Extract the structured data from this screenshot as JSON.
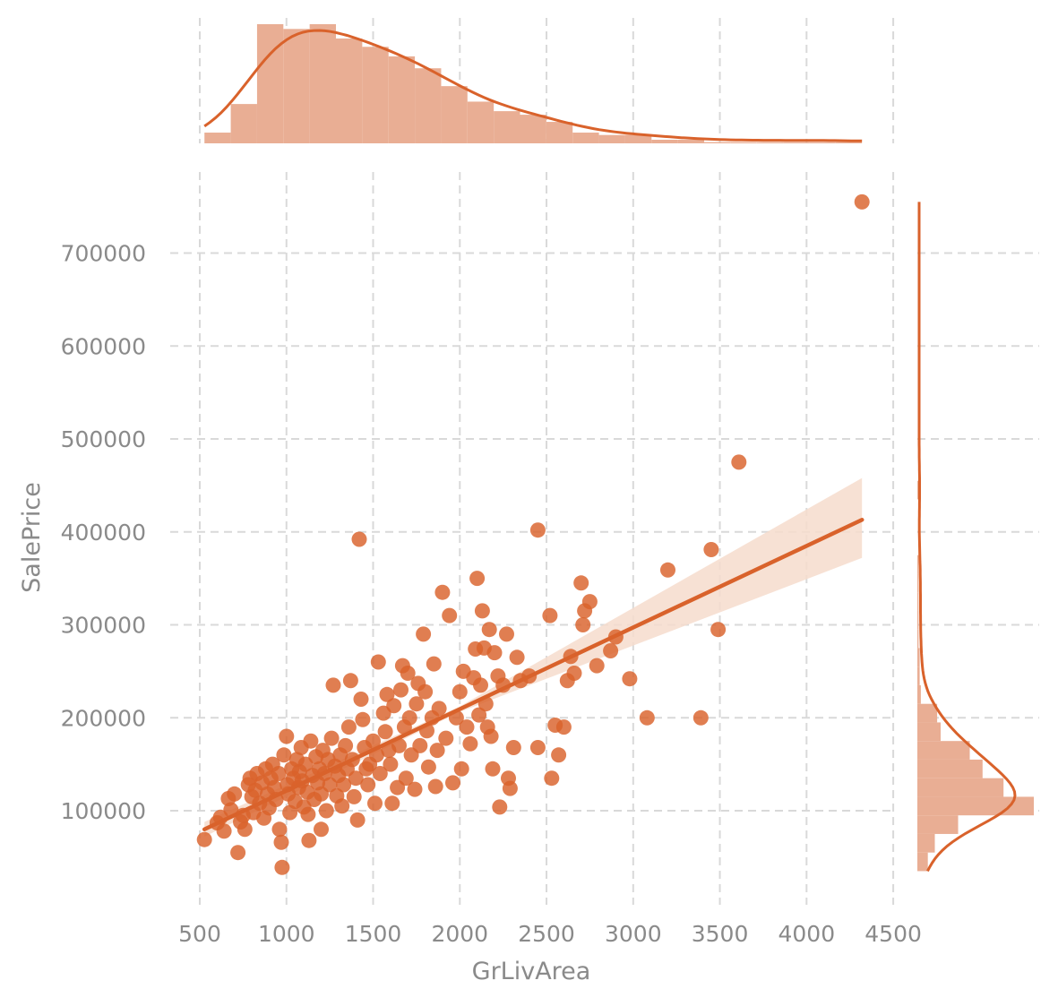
{
  "colors": {
    "accent": "#d9622b",
    "hist_fill": "#e9ae94",
    "ci_fill": "#f6dccd",
    "grid": "#d9d9d9",
    "text": "#8a8a8a"
  },
  "chart_data": {
    "type": "scatter",
    "layout": "jointplot",
    "xlabel": "GrLivArea",
    "ylabel": "SalePrice",
    "xlim": [
      400,
      4650
    ],
    "ylim": [
      10000,
      770000
    ],
    "x_ticks": [
      500,
      1000,
      1500,
      2000,
      2500,
      3000,
      3500,
      4000,
      4500
    ],
    "y_ticks": [
      100000,
      200000,
      300000,
      400000,
      500000,
      600000,
      700000
    ],
    "grid": true,
    "points": [
      [
        527,
        69000
      ],
      [
        600,
        87000
      ],
      [
        620,
        93000
      ],
      [
        640,
        78000
      ],
      [
        665,
        113000
      ],
      [
        680,
        101000
      ],
      [
        700,
        118000
      ],
      [
        720,
        55000
      ],
      [
        735,
        88000
      ],
      [
        750,
        95000
      ],
      [
        760,
        80000
      ],
      [
        780,
        128000
      ],
      [
        790,
        135000
      ],
      [
        800,
        115000
      ],
      [
        810,
        98000
      ],
      [
        820,
        122000
      ],
      [
        830,
        140000
      ],
      [
        845,
        108000
      ],
      [
        860,
        130000
      ],
      [
        870,
        92000
      ],
      [
        880,
        145000
      ],
      [
        890,
        118000
      ],
      [
        900,
        103000
      ],
      [
        910,
        135000
      ],
      [
        920,
        150000
      ],
      [
        930,
        125000
      ],
      [
        940,
        112000
      ],
      [
        955,
        140000
      ],
      [
        960,
        80000
      ],
      [
        970,
        66000
      ],
      [
        975,
        39000
      ],
      [
        985,
        160000
      ],
      [
        1000,
        180000
      ],
      [
        1005,
        128000
      ],
      [
        1010,
        118000
      ],
      [
        1020,
        98000
      ],
      [
        1030,
        145000
      ],
      [
        1040,
        135000
      ],
      [
        1050,
        110000
      ],
      [
        1060,
        155000
      ],
      [
        1070,
        125000
      ],
      [
        1075,
        142000
      ],
      [
        1085,
        168000
      ],
      [
        1090,
        132000
      ],
      [
        1100,
        104000
      ],
      [
        1110,
        150000
      ],
      [
        1120,
        120000
      ],
      [
        1125,
        96000
      ],
      [
        1130,
        68000
      ],
      [
        1140,
        175000
      ],
      [
        1150,
        138000
      ],
      [
        1160,
        112000
      ],
      [
        1170,
        158000
      ],
      [
        1180,
        130000
      ],
      [
        1190,
        145000
      ],
      [
        1200,
        80000
      ],
      [
        1200,
        118000
      ],
      [
        1210,
        165000
      ],
      [
        1220,
        140000
      ],
      [
        1230,
        100000
      ],
      [
        1240,
        155000
      ],
      [
        1250,
        128000
      ],
      [
        1260,
        178000
      ],
      [
        1270,
        235000
      ],
      [
        1280,
        148000
      ],
      [
        1290,
        116000
      ],
      [
        1300,
        138000
      ],
      [
        1310,
        160000
      ],
      [
        1320,
        105000
      ],
      [
        1330,
        128000
      ],
      [
        1340,
        170000
      ],
      [
        1350,
        145000
      ],
      [
        1360,
        190000
      ],
      [
        1370,
        240000
      ],
      [
        1380,
        155000
      ],
      [
        1390,
        115000
      ],
      [
        1400,
        135000
      ],
      [
        1410,
        90000
      ],
      [
        1420,
        392000
      ],
      [
        1430,
        220000
      ],
      [
        1440,
        198000
      ],
      [
        1450,
        168000
      ],
      [
        1460,
        145000
      ],
      [
        1470,
        128000
      ],
      [
        1480,
        150000
      ],
      [
        1500,
        175000
      ],
      [
        1510,
        108000
      ],
      [
        1520,
        160000
      ],
      [
        1530,
        260000
      ],
      [
        1540,
        140000
      ],
      [
        1560,
        205000
      ],
      [
        1570,
        185000
      ],
      [
        1580,
        225000
      ],
      [
        1590,
        165000
      ],
      [
        1600,
        150000
      ],
      [
        1610,
        108000
      ],
      [
        1620,
        213000
      ],
      [
        1640,
        125000
      ],
      [
        1650,
        170000
      ],
      [
        1660,
        230000
      ],
      [
        1670,
        256000
      ],
      [
        1680,
        190000
      ],
      [
        1690,
        135000
      ],
      [
        1700,
        248000
      ],
      [
        1710,
        200000
      ],
      [
        1720,
        160000
      ],
      [
        1740,
        123000
      ],
      [
        1750,
        215000
      ],
      [
        1760,
        237000
      ],
      [
        1770,
        170000
      ],
      [
        1790,
        290000
      ],
      [
        1800,
        228000
      ],
      [
        1810,
        186000
      ],
      [
        1820,
        147000
      ],
      [
        1840,
        200000
      ],
      [
        1850,
        258000
      ],
      [
        1860,
        126000
      ],
      [
        1870,
        165000
      ],
      [
        1880,
        210000
      ],
      [
        1900,
        335000
      ],
      [
        1920,
        178000
      ],
      [
        1940,
        310000
      ],
      [
        1960,
        130000
      ],
      [
        1980,
        200000
      ],
      [
        2000,
        228000
      ],
      [
        2010,
        145000
      ],
      [
        2020,
        250000
      ],
      [
        2040,
        190000
      ],
      [
        2060,
        172000
      ],
      [
        2080,
        243000
      ],
      [
        2090,
        274000
      ],
      [
        2100,
        350000
      ],
      [
        2110,
        203000
      ],
      [
        2120,
        235000
      ],
      [
        2130,
        315000
      ],
      [
        2140,
        275000
      ],
      [
        2150,
        215000
      ],
      [
        2160,
        190000
      ],
      [
        2170,
        295000
      ],
      [
        2180,
        180000
      ],
      [
        2190,
        145000
      ],
      [
        2200,
        270000
      ],
      [
        2220,
        245000
      ],
      [
        2230,
        104000
      ],
      [
        2250,
        235000
      ],
      [
        2270,
        290000
      ],
      [
        2280,
        135000
      ],
      [
        2290,
        124000
      ],
      [
        2310,
        168000
      ],
      [
        2330,
        265000
      ],
      [
        2350,
        240000
      ],
      [
        2400,
        245000
      ],
      [
        2450,
        168000
      ],
      [
        2450,
        402000
      ],
      [
        2520,
        310000
      ],
      [
        2530,
        135000
      ],
      [
        2550,
        192000
      ],
      [
        2570,
        160000
      ],
      [
        2600,
        190000
      ],
      [
        2620,
        240000
      ],
      [
        2640,
        266000
      ],
      [
        2660,
        248000
      ],
      [
        2700,
        345000
      ],
      [
        2710,
        300000
      ],
      [
        2720,
        315000
      ],
      [
        2750,
        325000
      ],
      [
        2790,
        256000
      ],
      [
        2870,
        272000
      ],
      [
        2900,
        287000
      ],
      [
        2980,
        242000
      ],
      [
        3080,
        200000
      ],
      [
        3200,
        359000
      ],
      [
        3390,
        200000
      ],
      [
        3450,
        381000
      ],
      [
        3490,
        295000
      ],
      [
        3610,
        475000
      ],
      [
        4320,
        755000
      ]
    ],
    "regression": {
      "x0": 527,
      "y0": 80000,
      "x1": 4320,
      "y1": 413000,
      "ci_low_end": 372000,
      "ci_high_end": 458000
    },
    "x_hist": {
      "bin_start": 527,
      "bin_width": 151.7,
      "counts": [
        9,
        33,
        100,
        96,
        100,
        88,
        81,
        73,
        63,
        48,
        35,
        27,
        24,
        18,
        9,
        7,
        7,
        3,
        3,
        1,
        1,
        1,
        1,
        1,
        1
      ]
    },
    "y_hist": {
      "bin_start": 35000,
      "bin_width": 20000,
      "counts": [
        9,
        15,
        35,
        100,
        74,
        56,
        45,
        20,
        17,
        3,
        2,
        2,
        1,
        1,
        1,
        1,
        1,
        0,
        0,
        0,
        1,
        0,
        0,
        0,
        0,
        0,
        0,
        0,
        0,
        0,
        0,
        0,
        0,
        0,
        0,
        0
      ]
    }
  }
}
